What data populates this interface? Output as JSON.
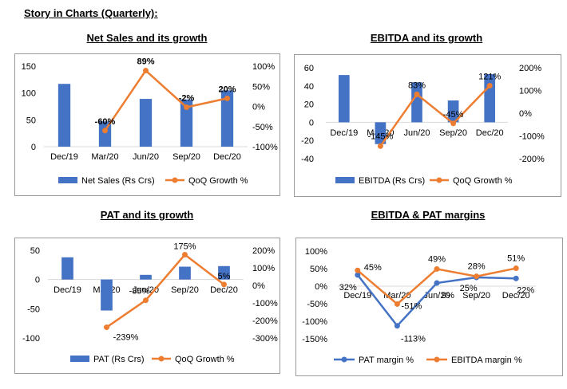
{
  "page_title": "Story in Charts (Quarterly):",
  "colors": {
    "bar": "#4472c4",
    "line_orange": "#ed7d31",
    "line_blue": "#4472c4",
    "axis": "#d9d9d9",
    "border": "#9a9a9a"
  },
  "chart_data": [
    {
      "type": "bar",
      "title": "Net Sales and its growth",
      "categories": [
        "Dec/19",
        "Mar/20",
        "Jun/20",
        "Sep/20",
        "Dec/20"
      ],
      "series": [
        {
          "name": "Net Sales (Rs Crs)",
          "kind": "bar",
          "axis": "left",
          "values": [
            117,
            47,
            89,
            88,
            105
          ]
        },
        {
          "name": "QoQ Growth %",
          "kind": "line",
          "axis": "right",
          "values": [
            null,
            -60,
            89,
            -2,
            20
          ],
          "labels": [
            "",
            "-60%",
            "89%",
            "-2%",
            "20%"
          ]
        }
      ],
      "left_axis": {
        "ticks": [
          "150",
          "100",
          "50",
          "0"
        ],
        "ylim": [
          0,
          150
        ]
      },
      "right_axis": {
        "ticks": [
          "100%",
          "50%",
          "0%",
          "-50%",
          "-100%"
        ],
        "ylim": [
          -100,
          100
        ]
      }
    },
    {
      "type": "bar",
      "title": "EBITDA and its growth",
      "categories": [
        "Dec/19",
        "Mar/20",
        "Jun/20",
        "Sep/20",
        "Dec/20"
      ],
      "series": [
        {
          "name": "EBITDA (Rs Crs)",
          "kind": "bar",
          "axis": "left",
          "values": [
            52,
            -24,
            44,
            24,
            53
          ]
        },
        {
          "name": "QoQ Growth %",
          "kind": "line",
          "axis": "right",
          "values": [
            null,
            -145,
            83,
            -45,
            121
          ],
          "labels": [
            "",
            "-145%",
            "83%",
            "-45%",
            "121%"
          ]
        }
      ],
      "left_axis": {
        "ticks": [
          "60",
          "40",
          "20",
          "0",
          "-20",
          "-40"
        ],
        "ylim": [
          -40,
          60
        ]
      },
      "right_axis": {
        "ticks": [
          "200%",
          "100%",
          "0%",
          "-100%",
          "-200%"
        ],
        "ylim": [
          -200,
          200
        ]
      }
    },
    {
      "type": "bar",
      "title": "PAT and its growth",
      "categories": [
        "Dec/19",
        "Mar/20",
        "Jun/20",
        "Sep/20",
        "Dec/20"
      ],
      "series": [
        {
          "name": "PAT (Rs Crs)",
          "kind": "bar",
          "axis": "left",
          "values": [
            38,
            -53,
            8,
            22,
            23
          ]
        },
        {
          "name": "QoQ Growth %",
          "kind": "line",
          "axis": "right",
          "values": [
            null,
            -239,
            -85,
            175,
            5
          ],
          "labels": [
            "",
            "-239%",
            "-85%",
            "175%",
            "5%"
          ]
        }
      ],
      "left_axis": {
        "ticks": [
          "50",
          "0",
          "-50",
          "-100"
        ],
        "ylim": [
          -100,
          50
        ]
      },
      "right_axis": {
        "ticks": [
          "200%",
          "100%",
          "0%",
          "-100%",
          "-200%",
          "-300%"
        ],
        "ylim": [
          -300,
          200
        ]
      }
    },
    {
      "type": "line",
      "title": "EBITDA & PAT margins",
      "categories": [
        "Dec/19",
        "Mar/20",
        "Jun/20",
        "Sep/20",
        "Dec/20"
      ],
      "series": [
        {
          "name": "PAT margin %",
          "kind": "line",
          "color": "#4472c4",
          "values": [
            32,
            -113,
            9,
            25,
            22
          ],
          "labels": [
            "32%",
            "-113%",
            "9%",
            "25%",
            "22%"
          ]
        },
        {
          "name": "EBITDA margin %",
          "kind": "line",
          "color": "#ed7d31",
          "values": [
            45,
            -51,
            49,
            28,
            51
          ],
          "labels": [
            "45%",
            "-51%",
            "49%",
            "28%",
            "51%"
          ]
        }
      ],
      "left_axis": {
        "ticks": [
          "100%",
          "50%",
          "0%",
          "-50%",
          "-100%",
          "-150%"
        ],
        "ylim": [
          -150,
          100
        ]
      }
    }
  ]
}
